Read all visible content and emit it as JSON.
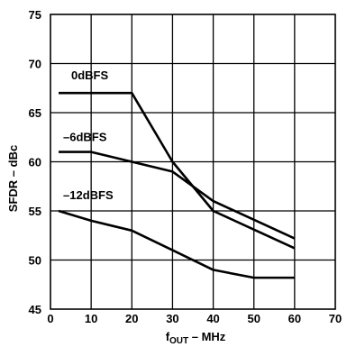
{
  "chart_data": {
    "type": "line",
    "xlabel": {
      "base": "f",
      "sub": "OUT",
      "rest": " – MHz"
    },
    "ylabel": "SFDR – dBc",
    "xlim": [
      0,
      70
    ],
    "ylim": [
      45,
      75
    ],
    "xticks": [
      0,
      10,
      20,
      30,
      40,
      50,
      60,
      70
    ],
    "yticks": [
      45,
      50,
      55,
      60,
      65,
      70,
      75
    ],
    "grid": true,
    "series": [
      {
        "name": "0dBFS",
        "x": [
          2,
          20,
          30,
          40,
          60
        ],
        "y": [
          67,
          67,
          60,
          55,
          51.2
        ]
      },
      {
        "name": "–6dBFS",
        "x": [
          2,
          10,
          20,
          30,
          40,
          60
        ],
        "y": [
          61,
          61,
          60,
          59,
          56,
          52.2
        ]
      },
      {
        "name": "–12dBFS",
        "x": [
          2,
          10,
          20,
          30,
          40,
          50,
          60
        ],
        "y": [
          55,
          54,
          53,
          51,
          49,
          48.2,
          48.2
        ]
      }
    ]
  }
}
